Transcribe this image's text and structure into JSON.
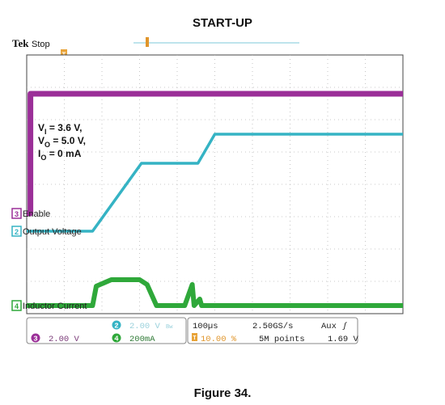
{
  "title": "START-UP",
  "caption": "Figure 34.",
  "scope": {
    "brand": "Tek",
    "state": "Stop",
    "trigger_marker": "T"
  },
  "chart_data": {
    "type": "line",
    "title": "START-UP",
    "grid": true,
    "x_divisions": 10,
    "y_divisions": 8,
    "time_scale": "100µs",
    "annotations": [
      "VI = 3.6 V,",
      "VO = 5.0 V,",
      "IO = 0 mA"
    ],
    "annotation_parts": [
      {
        "main": "V",
        "sub": "I",
        "rest": " = 3.6 V,"
      },
      {
        "main": "V",
        "sub": "O",
        "rest": " = 5.0 V,"
      },
      {
        "main": "I",
        "sub": "O",
        "rest": " = 0 mA"
      }
    ],
    "series": [
      {
        "name": "Enable",
        "channel": "3",
        "color": "#9b2f98",
        "scale": "2.00 V",
        "x": [
          0,
          0.1,
          0.1,
          10
        ],
        "y": [
          3.1,
          3.1,
          6.8,
          6.8
        ]
      },
      {
        "name": "Output Voltage",
        "channel": "2",
        "color": "#35b3c4",
        "scale": "2.00 V",
        "x": [
          0,
          1.75,
          3.05,
          4.55,
          5.0,
          10
        ],
        "y": [
          2.55,
          2.55,
          4.65,
          4.65,
          5.55,
          5.55
        ]
      },
      {
        "name": "Inductor Current",
        "channel": "4",
        "color": "#2fa83a",
        "scale": "200mA",
        "x": [
          0,
          1.75,
          1.85,
          2.25,
          3.0,
          3.2,
          3.45,
          3.65,
          4.2,
          4.4,
          4.45,
          4.6,
          4.65,
          4.9,
          10
        ],
        "y": [
          0.25,
          0.25,
          0.85,
          1.05,
          1.05,
          0.9,
          0.25,
          0.25,
          0.25,
          0.9,
          0.25,
          0.45,
          0.25,
          0.25,
          0.25
        ]
      }
    ]
  },
  "status": {
    "ch2_num": "2",
    "ch2_scale": "2.00 V",
    "ch2_bw": "Bw",
    "ch3_num": "3",
    "ch3_scale": "2.00 V",
    "ch4_num": "4",
    "ch4_scale": "200mA",
    "timebase": "100µs",
    "sample_rate": "2.50GS/s",
    "trigger_position": "10.00 %",
    "record_length": "5M points",
    "trigger_source": "Aux",
    "trigger_slope": "ʃ",
    "trigger_level": "1.69 V"
  }
}
